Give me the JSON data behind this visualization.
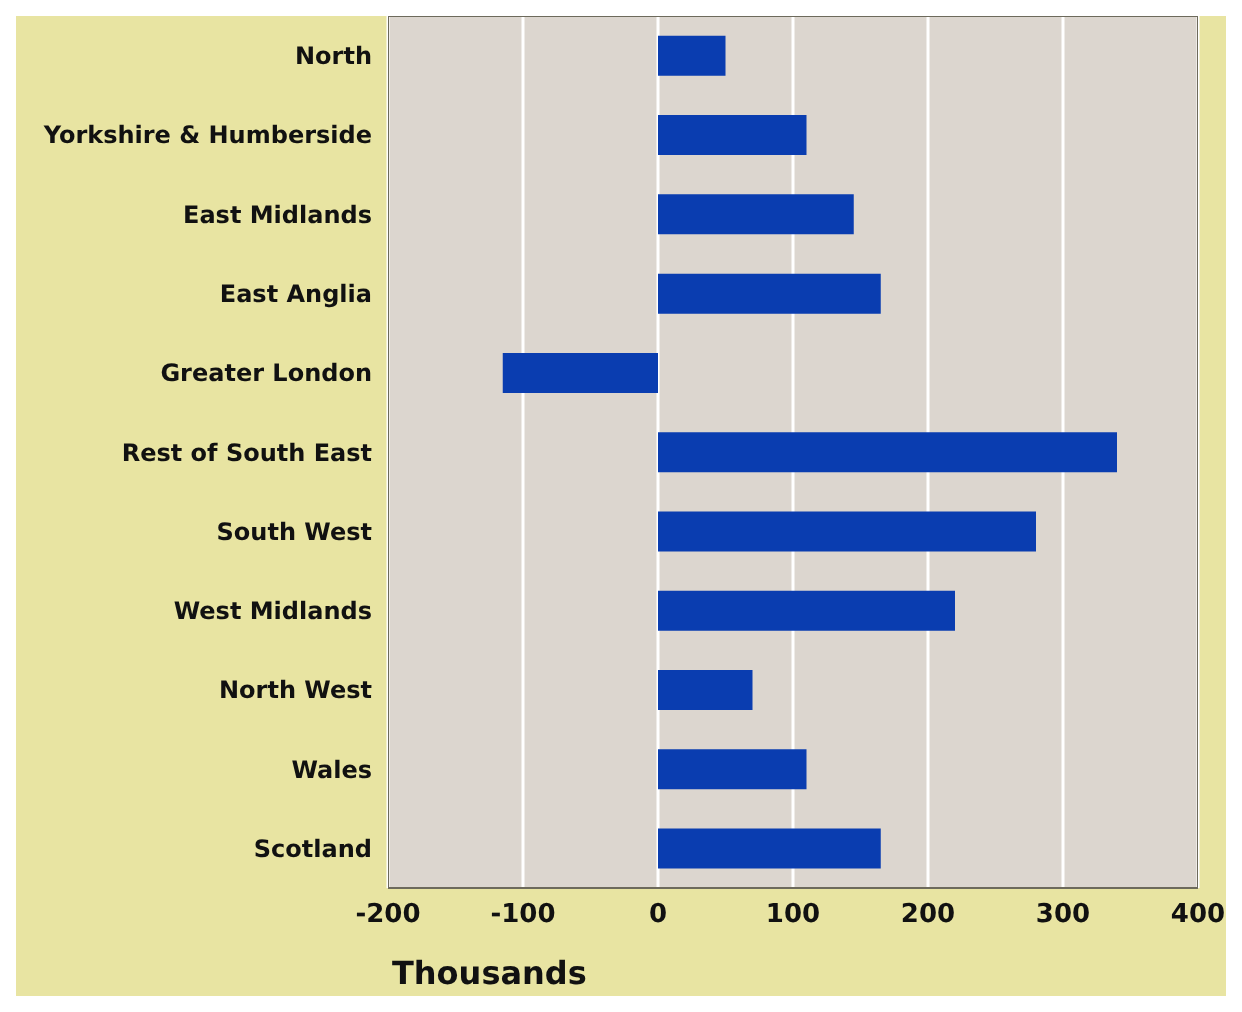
{
  "chart_data": {
    "type": "bar",
    "orientation": "horizontal",
    "xlabel": "Thousands",
    "categories": [
      "North",
      "Yorkshire & Humberside",
      "East Midlands",
      "East Anglia",
      "Greater London",
      "Rest of South East",
      "South West",
      "West Midlands",
      "North West",
      "Wales",
      "Scotland"
    ],
    "values": [
      50,
      110,
      145,
      165,
      -115,
      340,
      280,
      220,
      70,
      110,
      165
    ],
    "color": "#0a3db0",
    "xlim": [
      -200,
      400
    ],
    "xticks": [
      -200,
      -100,
      0,
      100,
      200,
      300,
      400
    ],
    "grid": "x"
  }
}
